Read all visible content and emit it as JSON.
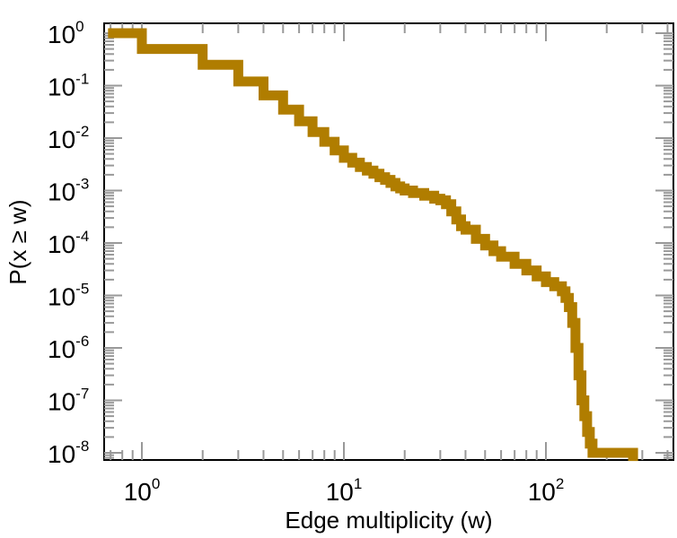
{
  "chart_data": {
    "type": "line",
    "title": "",
    "xlabel": "Edge multiplicity (w)",
    "ylabel": "P(x ≥ w)",
    "xscale": "log",
    "yscale": "log",
    "xlim": [
      0.68,
      430
    ],
    "ylim": [
      8e-09,
      1.3
    ],
    "grid": false,
    "legend": "none",
    "x_ticks": [
      {
        "base": "10",
        "exp": "0"
      },
      {
        "base": "10",
        "exp": "1"
      },
      {
        "base": "10",
        "exp": "2"
      }
    ],
    "y_ticks": [
      {
        "base": "10",
        "exp": "0"
      },
      {
        "base": "10",
        "exp": "-1"
      },
      {
        "base": "10",
        "exp": "-2"
      },
      {
        "base": "10",
        "exp": "-3"
      },
      {
        "base": "10",
        "exp": "-4"
      },
      {
        "base": "10",
        "exp": "-5"
      },
      {
        "base": "10",
        "exp": "-6"
      },
      {
        "base": "10",
        "exp": "-7"
      },
      {
        "base": "10",
        "exp": "-8"
      }
    ],
    "series": [
      {
        "color": "#b07d00",
        "x": [
          0.68,
          1,
          2,
          3,
          4,
          5,
          6,
          7,
          8,
          9,
          10,
          11,
          12,
          13,
          14,
          15,
          16,
          17,
          18,
          19,
          20,
          22,
          25,
          28,
          30,
          32,
          34,
          36,
          38,
          40,
          45,
          50,
          55,
          60,
          70,
          80,
          90,
          100,
          110,
          120,
          125,
          130,
          135,
          140,
          145,
          150,
          155,
          160,
          165,
          170,
          175,
          180,
          190,
          200,
          220,
          240,
          260,
          270
        ],
        "y": [
          1.0,
          0.5,
          0.25,
          0.12,
          0.065,
          0.035,
          0.021,
          0.013,
          0.0085,
          0.0058,
          0.0042,
          0.0034,
          0.0028,
          0.0024,
          0.0021,
          0.0018,
          0.0016,
          0.0014,
          0.0012,
          0.0011,
          0.001,
          0.0009,
          0.0008,
          0.0007,
          0.00065,
          0.00055,
          0.0004,
          0.00028,
          0.00021,
          0.00018,
          0.00012,
          9e-05,
          7e-05,
          5.5e-05,
          4e-05,
          3e-05,
          2.3e-05,
          1.8e-05,
          1.5e-05,
          1.2e-05,
          9e-06,
          6e-06,
          3e-06,
          1e-06,
          3e-07,
          1e-07,
          5e-08,
          2.5e-08,
          1.5e-08,
          1e-08,
          1e-08,
          1e-08,
          1e-08,
          1e-08,
          1e-08,
          1e-08,
          1e-08,
          7e-09
        ]
      }
    ]
  }
}
